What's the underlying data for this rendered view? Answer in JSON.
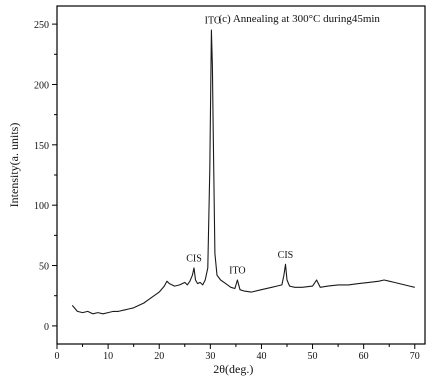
{
  "chart_data": {
    "type": "line",
    "title": "(c) Annealing at 300°C during45min",
    "xlabel": "2θ(deg.)",
    "ylabel": "Intensity(a. units)",
    "xlim": [
      0,
      72
    ],
    "ylim": [
      -15,
      265
    ],
    "xticks": [
      "0",
      "10",
      "20",
      "30",
      "40",
      "50",
      "60",
      "70"
    ],
    "yticks": [
      "0",
      "50",
      "100",
      "150",
      "200",
      "250"
    ],
    "grid": false,
    "legend": "none",
    "colors": {
      "line": "#1a1a1a",
      "axis": "#000000"
    },
    "series": [
      {
        "x": [
          3.0,
          4.0,
          5.0,
          6.0,
          7.0,
          8.0,
          9.0,
          10.0,
          11.0,
          12.0,
          13.0,
          14.0,
          15.0,
          16.0,
          17.0,
          18.0,
          19.0,
          20.0,
          21.0,
          21.5,
          22.0,
          23.0,
          24.0,
          25.0,
          25.5,
          26.0,
          26.5,
          26.8,
          27.1,
          27.5,
          28.0,
          28.5,
          29.0,
          29.5,
          29.9,
          30.2,
          30.4,
          30.6,
          30.9,
          31.3,
          32.0,
          33.0,
          34.0,
          34.8,
          35.3,
          35.8,
          36.5,
          38.0,
          40.0,
          42.0,
          43.0,
          44.0,
          44.4,
          44.7,
          45.0,
          45.5,
          46.5,
          48.0,
          50.0,
          50.8,
          51.5,
          53.0,
          55.0,
          57.0,
          59.0,
          61.0,
          63.0,
          64.0,
          65.0,
          66.0,
          67.0,
          68.0,
          69.0,
          70.0
        ],
        "values": [
          17,
          12,
          11,
          12,
          10,
          11,
          10,
          11,
          12,
          12,
          13,
          14,
          15,
          17,
          19,
          22,
          25,
          28,
          33,
          37,
          35,
          33,
          34,
          36,
          34,
          37,
          42,
          48,
          38,
          35,
          36,
          34,
          38,
          48,
          130,
          245,
          215,
          150,
          60,
          42,
          38,
          35,
          32,
          31,
          38,
          30,
          29,
          28,
          30,
          32,
          33,
          34,
          42,
          51,
          38,
          33,
          32,
          32,
          33,
          38,
          32,
          33,
          34,
          34,
          35,
          36,
          37,
          38,
          37,
          36,
          35,
          34,
          33,
          32
        ]
      }
    ],
    "annotations": [
      {
        "text": "ITO",
        "x": 30.5,
        "y": 247
      },
      {
        "text": "CIS",
        "x": 26.8,
        "y": 50
      },
      {
        "text": "ITO",
        "x": 35.3,
        "y": 40
      },
      {
        "text": "CIS",
        "x": 44.7,
        "y": 53
      }
    ]
  }
}
